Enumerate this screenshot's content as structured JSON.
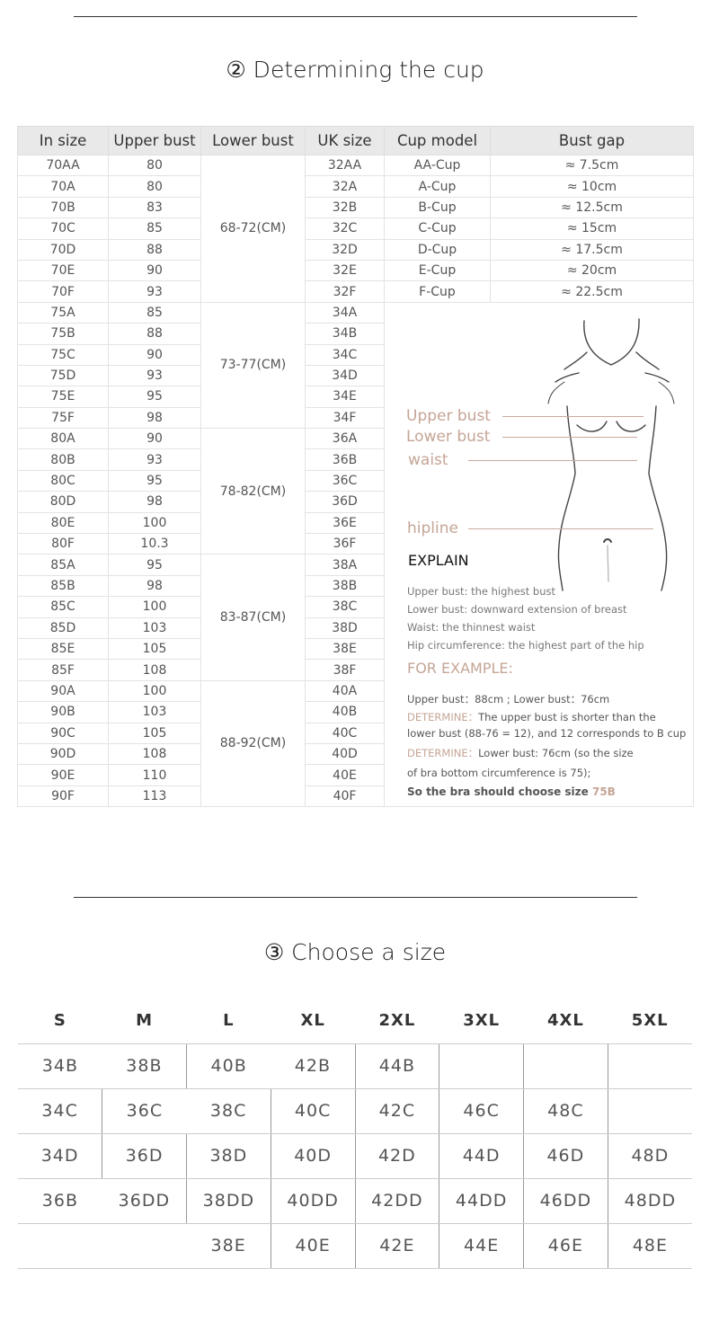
{
  "section2": {
    "title": "② Determining the cup",
    "headers": [
      "In size",
      "Upper bust",
      "Lower bust",
      "UK size",
      "Cup model",
      "Bust gap"
    ],
    "groups": [
      {
        "lower_bust": "68-72(CM)",
        "rows": [
          [
            "70AA",
            "80",
            "32AA",
            "AA-Cup",
            "≈ 7.5cm"
          ],
          [
            "70A",
            "80",
            "32A",
            "A-Cup",
            "≈ 10cm"
          ],
          [
            "70B",
            "83",
            "32B",
            "B-Cup",
            "≈ 12.5cm"
          ],
          [
            "70C",
            "85",
            "32C",
            "C-Cup",
            "≈ 15cm"
          ],
          [
            "70D",
            "88",
            "32D",
            "D-Cup",
            "≈ 17.5cm"
          ],
          [
            "70E",
            "90",
            "32E",
            "E-Cup",
            "≈ 20cm"
          ],
          [
            "70F",
            "93",
            "32F",
            "F-Cup",
            "≈ 22.5cm"
          ]
        ]
      },
      {
        "lower_bust": "73-77(CM)",
        "rows": [
          [
            "75A",
            "85",
            "34A"
          ],
          [
            "75B",
            "88",
            "34B"
          ],
          [
            "75C",
            "90",
            "34C"
          ],
          [
            "75D",
            "93",
            "34D"
          ],
          [
            "75E",
            "95",
            "34E"
          ],
          [
            "75F",
            "98",
            "34F"
          ]
        ]
      },
      {
        "lower_bust": "78-82(CM)",
        "rows": [
          [
            "80A",
            "90",
            "36A"
          ],
          [
            "80B",
            "93",
            "36B"
          ],
          [
            "80C",
            "95",
            "36C"
          ],
          [
            "80D",
            "98",
            "36D"
          ],
          [
            "80E",
            "100",
            "36E"
          ],
          [
            "80F",
            "10.3",
            "36F"
          ]
        ]
      },
      {
        "lower_bust": "83-87(CM)",
        "rows": [
          [
            "85A",
            "95",
            "38A"
          ],
          [
            "85B",
            "98",
            "38B"
          ],
          [
            "85C",
            "100",
            "38C"
          ],
          [
            "85D",
            "103",
            "38D"
          ],
          [
            "85E",
            "105",
            "38E"
          ],
          [
            "85F",
            "108",
            "38F"
          ]
        ]
      },
      {
        "lower_bust": "88-92(CM)",
        "rows": [
          [
            "90A",
            "100",
            "40A"
          ],
          [
            "90B",
            "103",
            "40B"
          ],
          [
            "90C",
            "105",
            "40C"
          ],
          [
            "90D",
            "108",
            "40D"
          ],
          [
            "90E",
            "110",
            "40E"
          ],
          [
            "90F",
            "113",
            "40F"
          ]
        ]
      }
    ],
    "figure_labels": {
      "upper_bust": "Upper bust",
      "lower_bust": "Lower bust",
      "waist": "waist",
      "hipline": "hipline"
    },
    "explain": {
      "heading": "EXPLAIN",
      "lines": [
        "Upper bust: the highest bust",
        "Lower bust: downward extension of breast",
        "Waist: the thinnest waist",
        "Hip circumference: the highest part of the hip"
      ],
      "example_heading": "FOR EXAMPLE:",
      "example_line": "Upper bust：88cm ; Lower bust：76cm",
      "determine_label": "DETERMINE：",
      "determine1_a": "The upper bust is shorter than the",
      "determine1_b": "lower bust (88-76 = 12), and 12 corresponds to B cup",
      "determine2_a": "Lower bust: 76cm (so the size",
      "determine2_b": "of bra bottom circumference is 75);",
      "conclusion": "So the bra should choose size ",
      "conclusion_size": "75B"
    },
    "accent_color": "#c5a596"
  },
  "section3": {
    "title": "③ Choose a size",
    "headers": [
      "S",
      "M",
      "L",
      "XL",
      "2XL",
      "3XL",
      "4XL",
      "5XL"
    ],
    "rows": [
      [
        "34B",
        "38B",
        "40B",
        "42B",
        "44B",
        "",
        "",
        ""
      ],
      [
        "34C",
        "36C",
        "38C",
        "40C",
        "42C",
        "46C",
        "48C",
        ""
      ],
      [
        "34D",
        "36D",
        "38D",
        "40D",
        "42D",
        "44D",
        "46D",
        "48D"
      ],
      [
        "36B",
        "36DD",
        "38DD",
        "40DD",
        "42DD",
        "44DD",
        "46DD",
        "48DD"
      ],
      [
        "",
        "",
        "38E",
        "40E",
        "42E",
        "44E",
        "46E",
        "48E"
      ]
    ]
  }
}
